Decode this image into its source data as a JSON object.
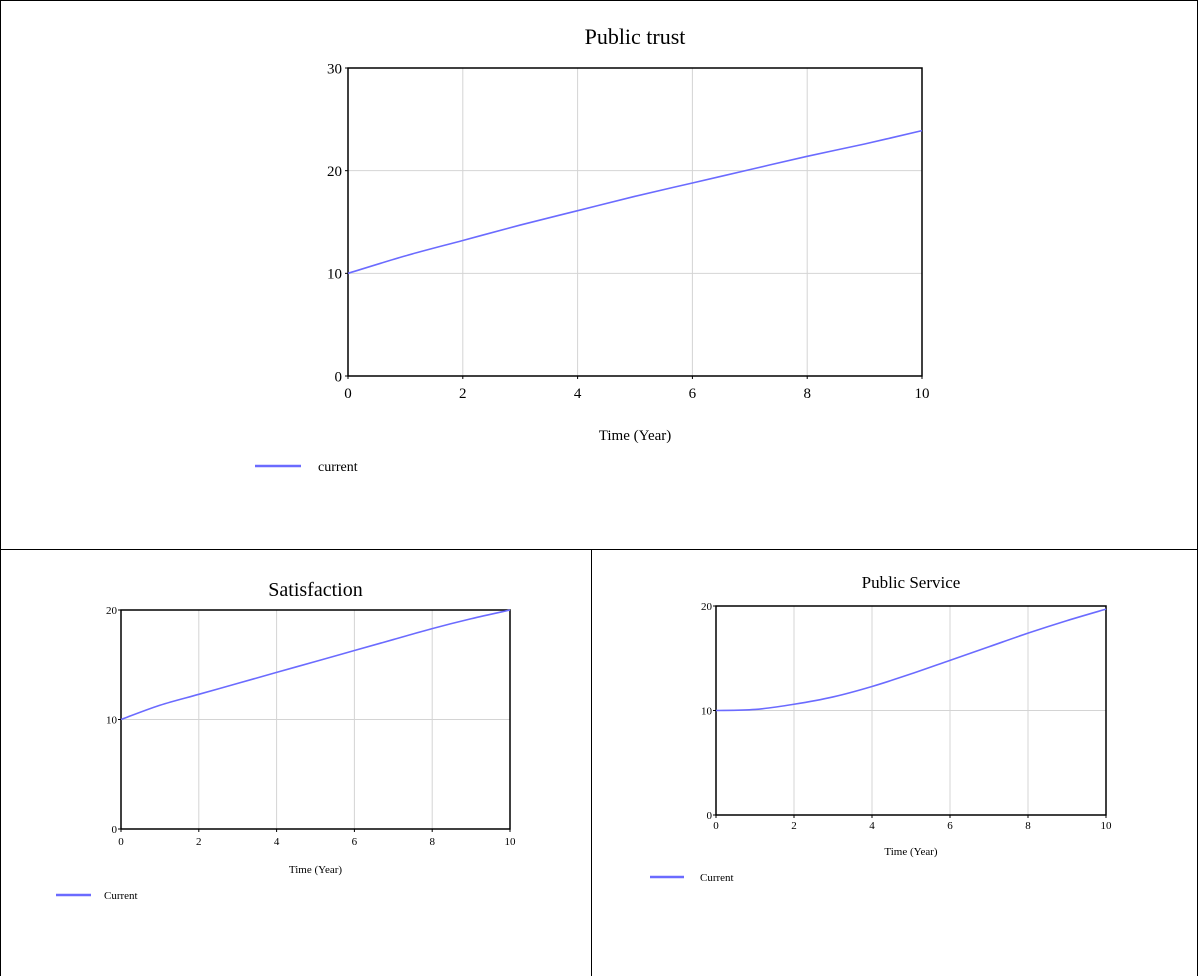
{
  "chart_data": [
    {
      "type": "line",
      "title": "Public trust",
      "xlabel": "Time (Year)",
      "ylabel": "",
      "xlim": [
        0,
        10
      ],
      "ylim": [
        0,
        30
      ],
      "xticks": [
        0,
        2,
        4,
        6,
        8,
        10
      ],
      "yticks": [
        0,
        10,
        20,
        30
      ],
      "grid": true,
      "legend_position": "bottom-left",
      "series": [
        {
          "name": "current",
          "color": "#6b6bff",
          "x": [
            0,
            1,
            2,
            3,
            4,
            5,
            6,
            7,
            8,
            9,
            10
          ],
          "y": [
            10,
            11.7,
            13.2,
            14.7,
            16.1,
            17.5,
            18.8,
            20.1,
            21.4,
            22.6,
            23.9
          ]
        }
      ]
    },
    {
      "type": "line",
      "title": "Satisfaction",
      "xlabel": "Time (Year)",
      "ylabel": "",
      "xlim": [
        0,
        10
      ],
      "ylim": [
        0,
        20
      ],
      "xticks": [
        0,
        2,
        4,
        6,
        8,
        10
      ],
      "yticks": [
        0,
        10,
        20
      ],
      "grid": true,
      "legend_position": "bottom-left",
      "series": [
        {
          "name": "Current",
          "color": "#6b6bff",
          "x": [
            0,
            1,
            2,
            3,
            4,
            5,
            6,
            7,
            8,
            9,
            10
          ],
          "y": [
            10,
            11.3,
            12.3,
            13.3,
            14.3,
            15.3,
            16.3,
            17.3,
            18.3,
            19.2,
            20
          ]
        }
      ]
    },
    {
      "type": "line",
      "title": "Public Service",
      "xlabel": "Time (Year)",
      "ylabel": "",
      "xlim": [
        0,
        10
      ],
      "ylim": [
        0,
        20
      ],
      "xticks": [
        0,
        2,
        4,
        6,
        8,
        10
      ],
      "yticks": [
        0,
        10,
        20
      ],
      "grid": true,
      "legend_position": "bottom-left",
      "series": [
        {
          "name": "Current",
          "color": "#6b6bff",
          "x": [
            0,
            1,
            2,
            3,
            4,
            5,
            6,
            7,
            8,
            9,
            10
          ],
          "y": [
            10,
            10.1,
            10.6,
            11.3,
            12.3,
            13.5,
            14.8,
            16.1,
            17.4,
            18.6,
            19.7
          ]
        }
      ]
    }
  ]
}
